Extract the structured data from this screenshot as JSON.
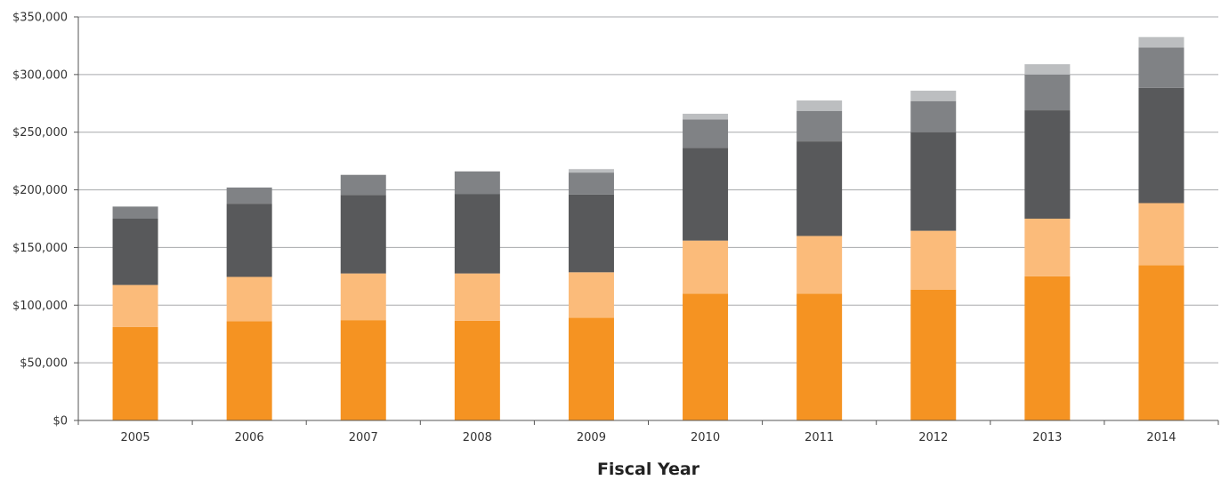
{
  "chart_data": {
    "type": "bar",
    "stacked": true,
    "title": "",
    "xlabel": "Fiscal Year",
    "ylabel": "",
    "ylim": [
      0,
      350000
    ],
    "yticks": [
      0,
      50000,
      100000,
      150000,
      200000,
      250000,
      300000,
      350000
    ],
    "ytick_labels": [
      "$0",
      "$50,000",
      "$100,000",
      "$150,000",
      "$200,000",
      "$250,000",
      "$300,000",
      "$350,000"
    ],
    "categories": [
      "2005",
      "2006",
      "2007",
      "2008",
      "2009",
      "2010",
      "2011",
      "2012",
      "2013",
      "2014"
    ],
    "grid": true,
    "legend": "none",
    "series": [
      {
        "color": "#f59322",
        "values": [
          81000,
          86000,
          87000,
          86500,
          89000,
          110000,
          110000,
          113500,
          125000,
          134500
        ]
      },
      {
        "color": "#fbbb7a",
        "values": [
          36500,
          38500,
          40500,
          41000,
          39500,
          46000,
          50000,
          51000,
          50000,
          54000
        ]
      },
      {
        "color": "#58595b",
        "values": [
          57500,
          63500,
          68000,
          69000,
          67500,
          80500,
          82000,
          85500,
          94000,
          100000
        ]
      },
      {
        "color": "#808285",
        "values": [
          10500,
          14000,
          17500,
          19500,
          19000,
          24500,
          26500,
          27000,
          31000,
          35000
        ]
      },
      {
        "color": "#bcbec0",
        "values": [
          0,
          0,
          0,
          0,
          3000,
          5000,
          9000,
          9000,
          9000,
          9000
        ]
      }
    ]
  }
}
